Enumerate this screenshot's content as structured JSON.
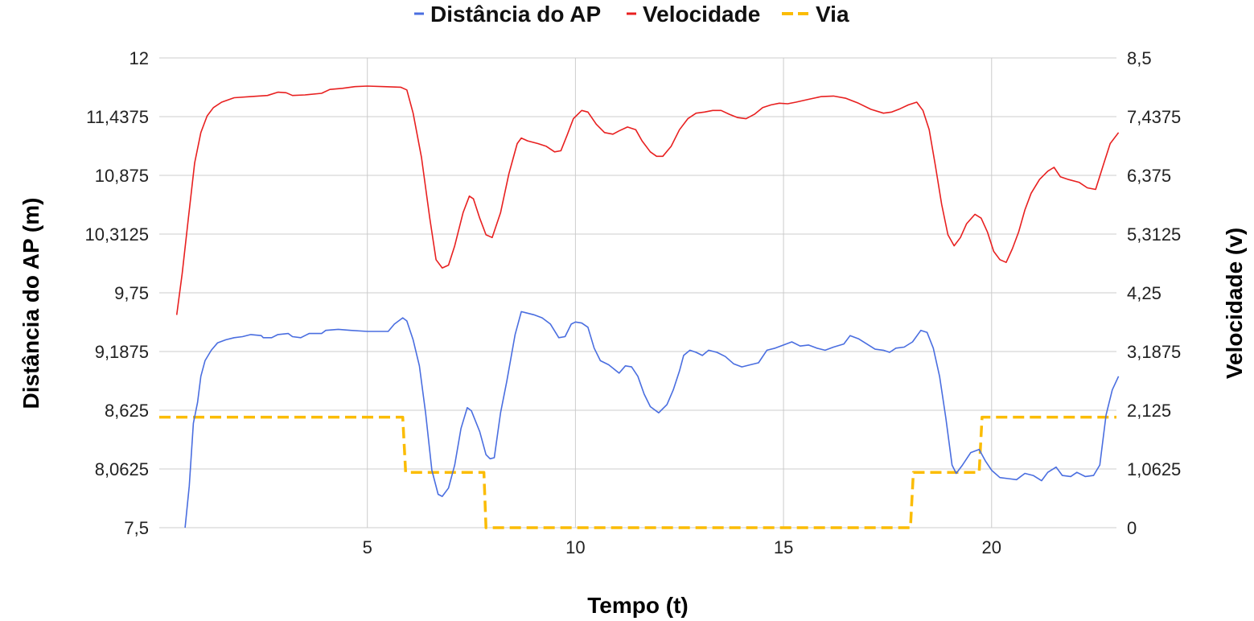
{
  "chart_data": {
    "type": "line",
    "xlabel": "Tempo (t)",
    "ylabel_left": "Distância do AP (m)",
    "ylabel_right": "Velocidade (v)",
    "xlim": [
      0,
      23
    ],
    "ylim_left": [
      7.5,
      12
    ],
    "ylim_right": [
      0,
      8.5
    ],
    "x_ticks": [
      "5",
      "10",
      "15",
      "20"
    ],
    "x_tick_values": [
      5,
      10,
      15,
      20
    ],
    "y_ticks_left": [
      "7,5",
      "8,0625",
      "8,625",
      "9,1875",
      "9,75",
      "10,3125",
      "10,875",
      "11,4375",
      "12"
    ],
    "y_ticks_right": [
      "0",
      "1,0625",
      "2,125",
      "3,1875",
      "4,25",
      "5,3125",
      "6,375",
      "7,4375",
      "8,5"
    ],
    "grid": true,
    "legend_position": "top",
    "series": [
      {
        "name": "Distância do AP",
        "axis": "left",
        "color": "#4a6ee0",
        "style": "solid",
        "points": [
          [
            0.62,
            7.5
          ],
          [
            0.72,
            7.9
          ],
          [
            0.82,
            8.5
          ],
          [
            0.92,
            8.7
          ],
          [
            1.0,
            8.95
          ],
          [
            1.1,
            9.1
          ],
          [
            1.25,
            9.2
          ],
          [
            1.4,
            9.27
          ],
          [
            1.6,
            9.3
          ],
          [
            1.8,
            9.32
          ],
          [
            2.0,
            9.33
          ],
          [
            2.2,
            9.35
          ],
          [
            2.45,
            9.34
          ],
          [
            2.5,
            9.32
          ],
          [
            2.7,
            9.32
          ],
          [
            2.85,
            9.35
          ],
          [
            3.1,
            9.36
          ],
          [
            3.2,
            9.33
          ],
          [
            3.4,
            9.32
          ],
          [
            3.6,
            9.36
          ],
          [
            3.9,
            9.36
          ],
          [
            4.0,
            9.39
          ],
          [
            4.3,
            9.4
          ],
          [
            4.6,
            9.39
          ],
          [
            5.0,
            9.38
          ],
          [
            5.5,
            9.38
          ],
          [
            5.65,
            9.45
          ],
          [
            5.85,
            9.51
          ],
          [
            5.95,
            9.48
          ],
          [
            6.1,
            9.3
          ],
          [
            6.25,
            9.05
          ],
          [
            6.4,
            8.6
          ],
          [
            6.55,
            8.05
          ],
          [
            6.7,
            7.82
          ],
          [
            6.8,
            7.8
          ],
          [
            6.95,
            7.88
          ],
          [
            7.1,
            8.1
          ],
          [
            7.25,
            8.45
          ],
          [
            7.4,
            8.65
          ],
          [
            7.5,
            8.62
          ],
          [
            7.7,
            8.42
          ],
          [
            7.85,
            8.2
          ],
          [
            7.95,
            8.16
          ],
          [
            8.05,
            8.17
          ],
          [
            8.2,
            8.6
          ],
          [
            8.35,
            8.9
          ],
          [
            8.55,
            9.35
          ],
          [
            8.7,
            9.57
          ],
          [
            8.8,
            9.56
          ],
          [
            9.0,
            9.54
          ],
          [
            9.2,
            9.51
          ],
          [
            9.4,
            9.45
          ],
          [
            9.6,
            9.32
          ],
          [
            9.75,
            9.33
          ],
          [
            9.9,
            9.45
          ],
          [
            10.0,
            9.47
          ],
          [
            10.15,
            9.46
          ],
          [
            10.3,
            9.42
          ],
          [
            10.45,
            9.22
          ],
          [
            10.6,
            9.1
          ],
          [
            10.8,
            9.06
          ],
          [
            11.05,
            8.98
          ],
          [
            11.2,
            9.05
          ],
          [
            11.35,
            9.04
          ],
          [
            11.5,
            8.95
          ],
          [
            11.65,
            8.78
          ],
          [
            11.8,
            8.66
          ],
          [
            12.0,
            8.6
          ],
          [
            12.2,
            8.68
          ],
          [
            12.35,
            8.82
          ],
          [
            12.5,
            9.0
          ],
          [
            12.6,
            9.15
          ],
          [
            12.75,
            9.2
          ],
          [
            12.9,
            9.18
          ],
          [
            13.05,
            9.15
          ],
          [
            13.2,
            9.2
          ],
          [
            13.4,
            9.18
          ],
          [
            13.6,
            9.14
          ],
          [
            13.8,
            9.07
          ],
          [
            14.0,
            9.04
          ],
          [
            14.2,
            9.06
          ],
          [
            14.4,
            9.08
          ],
          [
            14.6,
            9.2
          ],
          [
            14.8,
            9.22
          ],
          [
            15.0,
            9.25
          ],
          [
            15.2,
            9.28
          ],
          [
            15.4,
            9.24
          ],
          [
            15.6,
            9.25
          ],
          [
            15.8,
            9.22
          ],
          [
            16.0,
            9.2
          ],
          [
            16.2,
            9.23
          ],
          [
            16.45,
            9.26
          ],
          [
            16.6,
            9.34
          ],
          [
            16.8,
            9.31
          ],
          [
            17.0,
            9.26
          ],
          [
            17.2,
            9.21
          ],
          [
            17.4,
            9.2
          ],
          [
            17.55,
            9.18
          ],
          [
            17.7,
            9.22
          ],
          [
            17.9,
            9.23
          ],
          [
            18.1,
            9.28
          ],
          [
            18.3,
            9.39
          ],
          [
            18.45,
            9.37
          ],
          [
            18.6,
            9.22
          ],
          [
            18.75,
            8.95
          ],
          [
            18.9,
            8.55
          ],
          [
            19.05,
            8.1
          ],
          [
            19.15,
            8.02
          ],
          [
            19.3,
            8.1
          ],
          [
            19.5,
            8.22
          ],
          [
            19.7,
            8.25
          ],
          [
            19.85,
            8.14
          ],
          [
            20.0,
            8.05
          ],
          [
            20.2,
            7.98
          ],
          [
            20.4,
            7.97
          ],
          [
            20.6,
            7.96
          ],
          [
            20.8,
            8.02
          ],
          [
            21.0,
            8.0
          ],
          [
            21.2,
            7.95
          ],
          [
            21.35,
            8.03
          ],
          [
            21.55,
            8.08
          ],
          [
            21.7,
            8.0
          ],
          [
            21.9,
            7.99
          ],
          [
            22.05,
            8.03
          ],
          [
            22.25,
            7.99
          ],
          [
            22.45,
            8.0
          ],
          [
            22.6,
            8.1
          ],
          [
            22.75,
            8.58
          ],
          [
            22.9,
            8.82
          ],
          [
            23.05,
            8.95
          ]
        ]
      },
      {
        "name": "Velocidade",
        "axis": "right",
        "color": "#e82020",
        "style": "solid",
        "points": [
          [
            0.42,
            3.85
          ],
          [
            0.55,
            4.6
          ],
          [
            0.7,
            5.6
          ],
          [
            0.85,
            6.6
          ],
          [
            1.0,
            7.15
          ],
          [
            1.15,
            7.45
          ],
          [
            1.3,
            7.6
          ],
          [
            1.5,
            7.7
          ],
          [
            1.8,
            7.78
          ],
          [
            2.2,
            7.8
          ],
          [
            2.6,
            7.82
          ],
          [
            2.85,
            7.88
          ],
          [
            3.05,
            7.87
          ],
          [
            3.2,
            7.82
          ],
          [
            3.5,
            7.83
          ],
          [
            3.9,
            7.86
          ],
          [
            4.1,
            7.93
          ],
          [
            4.4,
            7.95
          ],
          [
            4.7,
            7.98
          ],
          [
            5.0,
            7.99
          ],
          [
            5.4,
            7.98
          ],
          [
            5.8,
            7.97
          ],
          [
            5.95,
            7.92
          ],
          [
            6.1,
            7.5
          ],
          [
            6.3,
            6.7
          ],
          [
            6.5,
            5.6
          ],
          [
            6.65,
            4.85
          ],
          [
            6.8,
            4.7
          ],
          [
            6.95,
            4.75
          ],
          [
            7.1,
            5.1
          ],
          [
            7.3,
            5.7
          ],
          [
            7.45,
            6.0
          ],
          [
            7.55,
            5.95
          ],
          [
            7.7,
            5.6
          ],
          [
            7.85,
            5.3
          ],
          [
            8.0,
            5.25
          ],
          [
            8.2,
            5.7
          ],
          [
            8.4,
            6.4
          ],
          [
            8.6,
            6.95
          ],
          [
            8.7,
            7.05
          ],
          [
            8.85,
            7.0
          ],
          [
            9.1,
            6.95
          ],
          [
            9.3,
            6.9
          ],
          [
            9.5,
            6.8
          ],
          [
            9.65,
            6.82
          ],
          [
            9.8,
            7.1
          ],
          [
            9.95,
            7.4
          ],
          [
            10.15,
            7.55
          ],
          [
            10.3,
            7.52
          ],
          [
            10.5,
            7.3
          ],
          [
            10.7,
            7.15
          ],
          [
            10.9,
            7.12
          ],
          [
            11.05,
            7.18
          ],
          [
            11.25,
            7.25
          ],
          [
            11.45,
            7.2
          ],
          [
            11.6,
            7.0
          ],
          [
            11.8,
            6.8
          ],
          [
            11.95,
            6.72
          ],
          [
            12.1,
            6.72
          ],
          [
            12.3,
            6.9
          ],
          [
            12.5,
            7.2
          ],
          [
            12.7,
            7.4
          ],
          [
            12.9,
            7.5
          ],
          [
            13.1,
            7.52
          ],
          [
            13.3,
            7.55
          ],
          [
            13.5,
            7.55
          ],
          [
            13.7,
            7.48
          ],
          [
            13.9,
            7.42
          ],
          [
            14.1,
            7.4
          ],
          [
            14.3,
            7.48
          ],
          [
            14.5,
            7.6
          ],
          [
            14.7,
            7.65
          ],
          [
            14.9,
            7.68
          ],
          [
            15.1,
            7.67
          ],
          [
            15.3,
            7.7
          ],
          [
            15.6,
            7.75
          ],
          [
            15.9,
            7.8
          ],
          [
            16.2,
            7.81
          ],
          [
            16.5,
            7.77
          ],
          [
            16.8,
            7.68
          ],
          [
            17.1,
            7.57
          ],
          [
            17.4,
            7.5
          ],
          [
            17.6,
            7.52
          ],
          [
            17.8,
            7.58
          ],
          [
            18.0,
            7.65
          ],
          [
            18.2,
            7.7
          ],
          [
            18.35,
            7.55
          ],
          [
            18.5,
            7.2
          ],
          [
            18.65,
            6.55
          ],
          [
            18.8,
            5.85
          ],
          [
            18.95,
            5.3
          ],
          [
            19.1,
            5.1
          ],
          [
            19.25,
            5.25
          ],
          [
            19.4,
            5.5
          ],
          [
            19.6,
            5.67
          ],
          [
            19.75,
            5.6
          ],
          [
            19.9,
            5.35
          ],
          [
            20.05,
            5.0
          ],
          [
            20.2,
            4.85
          ],
          [
            20.35,
            4.8
          ],
          [
            20.5,
            5.05
          ],
          [
            20.65,
            5.35
          ],
          [
            20.8,
            5.75
          ],
          [
            20.95,
            6.05
          ],
          [
            21.15,
            6.3
          ],
          [
            21.35,
            6.45
          ],
          [
            21.5,
            6.52
          ],
          [
            21.65,
            6.35
          ],
          [
            21.85,
            6.3
          ],
          [
            22.1,
            6.25
          ],
          [
            22.3,
            6.15
          ],
          [
            22.5,
            6.12
          ],
          [
            22.7,
            6.6
          ],
          [
            22.85,
            6.95
          ],
          [
            23.05,
            7.15
          ]
        ]
      },
      {
        "name": "Via",
        "axis": "right",
        "color": "#fbbc04",
        "style": "dashed",
        "points": [
          [
            0.0,
            2.0
          ],
          [
            5.85,
            2.0
          ],
          [
            5.92,
            1.0
          ],
          [
            7.8,
            1.0
          ],
          [
            7.85,
            0.0
          ],
          [
            18.05,
            0.0
          ],
          [
            18.12,
            1.0
          ],
          [
            19.7,
            1.0
          ],
          [
            19.77,
            2.0
          ],
          [
            23.0,
            2.0
          ]
        ]
      }
    ]
  }
}
